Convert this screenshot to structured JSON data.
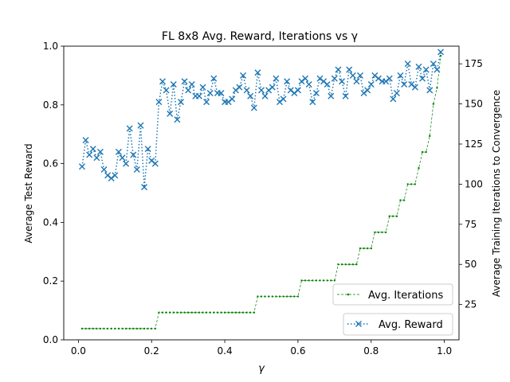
{
  "chart_data": {
    "type": "line",
    "title": "FL 8x8 Avg. Reward, Iterations vs γ",
    "xlabel": "γ",
    "ylabel": "Average Test Reward",
    "y2label": "Average Training Iterations to Convergence",
    "xlim": [
      -0.04,
      1.04
    ],
    "ylim": [
      0,
      1.0
    ],
    "y2lim": [
      3,
      186
    ],
    "xticks": [
      "0.0",
      "0.2",
      "0.4",
      "0.6",
      "0.8",
      "1.0"
    ],
    "yticks": [
      "0.0",
      "0.2",
      "0.4",
      "0.6",
      "0.8",
      "1.0"
    ],
    "y2ticks": [
      "25",
      "50",
      "75",
      "100",
      "125",
      "150",
      "175"
    ],
    "grid": false,
    "series": [
      {
        "name": "Avg. Reward",
        "axis": "left",
        "color": "#1f77b4",
        "marker": "x",
        "linestyle": "dotted",
        "legend_position": "lower-right",
        "x": [
          0.01,
          0.02,
          0.03,
          0.04,
          0.05,
          0.06,
          0.07,
          0.08,
          0.09,
          0.1,
          0.11,
          0.12,
          0.13,
          0.14,
          0.15,
          0.16,
          0.17,
          0.18,
          0.19,
          0.2,
          0.21,
          0.22,
          0.23,
          0.24,
          0.25,
          0.26,
          0.27,
          0.28,
          0.29,
          0.3,
          0.31,
          0.32,
          0.33,
          0.34,
          0.35,
          0.36,
          0.37,
          0.38,
          0.39,
          0.4,
          0.41,
          0.42,
          0.43,
          0.44,
          0.45,
          0.46,
          0.47,
          0.48,
          0.49,
          0.5,
          0.51,
          0.52,
          0.53,
          0.54,
          0.55,
          0.56,
          0.57,
          0.58,
          0.59,
          0.6,
          0.61,
          0.62,
          0.63,
          0.64,
          0.65,
          0.66,
          0.67,
          0.68,
          0.69,
          0.7,
          0.71,
          0.72,
          0.73,
          0.74,
          0.75,
          0.76,
          0.77,
          0.78,
          0.79,
          0.8,
          0.81,
          0.82,
          0.83,
          0.84,
          0.85,
          0.86,
          0.87,
          0.88,
          0.89,
          0.9,
          0.91,
          0.92,
          0.93,
          0.94,
          0.95,
          0.96,
          0.97,
          0.98,
          0.99
        ],
        "values": [
          0.59,
          0.68,
          0.63,
          0.65,
          0.62,
          0.64,
          0.58,
          0.56,
          0.55,
          0.56,
          0.64,
          0.62,
          0.6,
          0.72,
          0.63,
          0.58,
          0.73,
          0.52,
          0.65,
          0.61,
          0.6,
          0.81,
          0.88,
          0.85,
          0.77,
          0.87,
          0.75,
          0.81,
          0.88,
          0.85,
          0.87,
          0.83,
          0.83,
          0.86,
          0.81,
          0.84,
          0.89,
          0.84,
          0.84,
          0.81,
          0.81,
          0.82,
          0.85,
          0.86,
          0.9,
          0.85,
          0.83,
          0.79,
          0.91,
          0.85,
          0.83,
          0.85,
          0.86,
          0.89,
          0.81,
          0.82,
          0.88,
          0.85,
          0.84,
          0.85,
          0.88,
          0.89,
          0.87,
          0.81,
          0.84,
          0.89,
          0.88,
          0.87,
          0.83,
          0.89,
          0.92,
          0.88,
          0.83,
          0.92,
          0.9,
          0.88,
          0.9,
          0.84,
          0.85,
          0.87,
          0.9,
          0.89,
          0.88,
          0.88,
          0.89,
          0.82,
          0.84,
          0.9,
          0.87,
          0.94,
          0.87,
          0.86,
          0.93,
          0.89,
          0.92,
          0.85,
          0.94,
          0.92,
          0.98
        ]
      },
      {
        "name": "Avg. Iterations",
        "axis": "right",
        "color": "#008000",
        "marker": ".",
        "linestyle": "dashed",
        "legend_position": "lower-right",
        "x": [
          0.01,
          0.02,
          0.03,
          0.04,
          0.05,
          0.06,
          0.07,
          0.08,
          0.09,
          0.1,
          0.11,
          0.12,
          0.13,
          0.14,
          0.15,
          0.16,
          0.17,
          0.18,
          0.19,
          0.2,
          0.21,
          0.22,
          0.23,
          0.24,
          0.25,
          0.26,
          0.27,
          0.28,
          0.29,
          0.3,
          0.31,
          0.32,
          0.33,
          0.34,
          0.35,
          0.36,
          0.37,
          0.38,
          0.39,
          0.4,
          0.41,
          0.42,
          0.43,
          0.44,
          0.45,
          0.46,
          0.47,
          0.48,
          0.49,
          0.5,
          0.51,
          0.52,
          0.53,
          0.54,
          0.55,
          0.56,
          0.57,
          0.58,
          0.59,
          0.6,
          0.61,
          0.62,
          0.63,
          0.64,
          0.65,
          0.66,
          0.67,
          0.68,
          0.69,
          0.7,
          0.71,
          0.72,
          0.73,
          0.74,
          0.75,
          0.76,
          0.77,
          0.78,
          0.79,
          0.8,
          0.81,
          0.82,
          0.83,
          0.84,
          0.85,
          0.86,
          0.87,
          0.88,
          0.89,
          0.9,
          0.91,
          0.92,
          0.93,
          0.94,
          0.95,
          0.96,
          0.97,
          0.98,
          0.99
        ],
        "values": [
          10,
          10,
          10,
          10,
          10,
          10,
          10,
          10,
          10,
          10,
          10,
          10,
          10,
          10,
          10,
          10,
          10,
          10,
          10,
          10,
          10,
          20,
          20,
          20,
          20,
          20,
          20,
          20,
          20,
          20,
          20,
          20,
          20,
          20,
          20,
          20,
          20,
          20,
          20,
          20,
          20,
          20,
          20,
          20,
          20,
          20,
          20,
          20,
          30,
          30,
          30,
          30,
          30,
          30,
          30,
          30,
          30,
          30,
          30,
          30,
          40,
          40,
          40,
          40,
          40,
          40,
          40,
          40,
          40,
          40,
          50,
          50,
          50,
          50,
          50,
          50,
          60,
          60,
          60,
          60,
          70,
          70,
          70,
          70,
          80,
          80,
          80,
          90,
          90,
          100,
          100,
          100,
          110,
          120,
          120,
          130,
          150,
          160,
          180
        ]
      }
    ]
  }
}
